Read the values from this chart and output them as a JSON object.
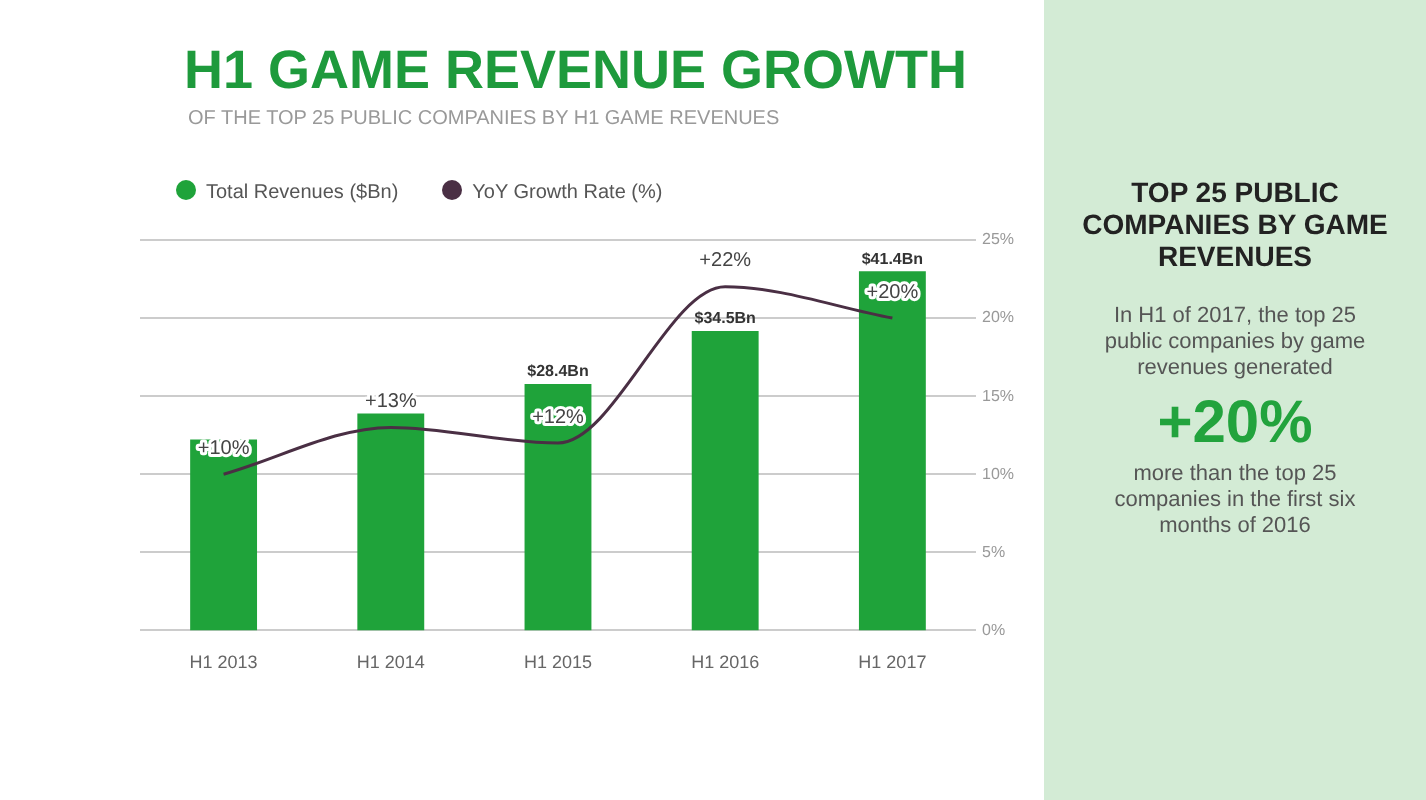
{
  "chart_data": {
    "type": "bar",
    "title": "H1 GAME REVENUE GROWTH",
    "subtitle": "OF THE TOP 25 PUBLIC COMPANIES BY H1 GAME REVENUES",
    "categories": [
      "H1 2013",
      "H1 2014",
      "H1 2015",
      "H1 2016",
      "H1 2017"
    ],
    "series": [
      {
        "name": "Total Revenues ($Bn)",
        "color": "#1fa33a",
        "values": [
          22,
          25,
          28.4,
          34.5,
          41.4
        ],
        "value_labels": [
          null,
          null,
          "$28.4Bn",
          "$34.5Bn",
          "$41.4Bn"
        ]
      },
      {
        "name": "YoY Growth Rate (%)",
        "type": "line",
        "axis": "y2",
        "color": "#4a2f44",
        "values": [
          10,
          13,
          12,
          22,
          20
        ],
        "value_labels": [
          "+10%",
          "+13%",
          "+12%",
          "+22%",
          "+20%"
        ]
      }
    ],
    "y2lim": [
      0,
      25
    ],
    "y2ticks": [
      {
        "value": 0,
        "label": "0%"
      },
      {
        "value": 5,
        "label": "5%"
      },
      {
        "value": 10,
        "label": "10%"
      },
      {
        "value": 15,
        "label": "15%"
      },
      {
        "value": 20,
        "label": "20%"
      },
      {
        "value": 25,
        "label": "25%"
      }
    ],
    "grid": "y2",
    "legend": "top left",
    "marker": "none",
    "tick_labels": "x",
    "annotations": [
      "TOP 25 PUBLIC COMPANIES BY GAME REVENUES",
      "In H1 of 2017, the top 25 public companies by game revenues generated",
      "+20%",
      "more than the top 25 companies in the first six months of 2016"
    ]
  }
}
